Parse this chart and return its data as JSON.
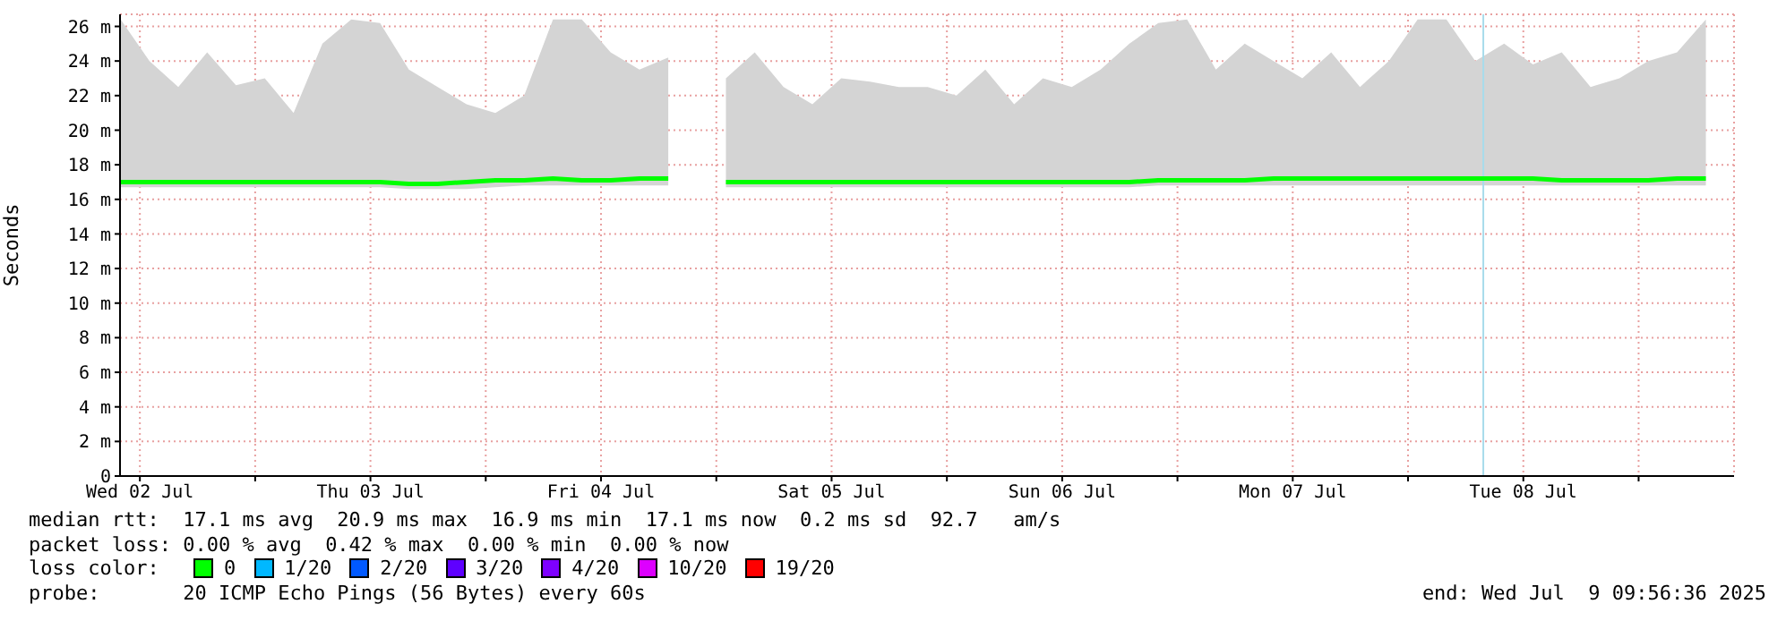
{
  "chart_data": {
    "type": "line",
    "ylabel": "Seconds",
    "legend_title": "loss color:",
    "x": [
      "2025-07-02T10:00",
      "2025-07-02T13:00",
      "2025-07-02T16:00",
      "2025-07-02T19:00",
      "2025-07-02T22:00",
      "2025-07-03T01:00",
      "2025-07-03T04:00",
      "2025-07-03T07:00",
      "2025-07-03T10:00",
      "2025-07-03T13:00",
      "2025-07-03T16:00",
      "2025-07-03T19:00",
      "2025-07-03T22:00",
      "2025-07-04T01:00",
      "2025-07-04T04:00",
      "2025-07-04T07:00",
      "2025-07-04T10:00",
      "2025-07-04T13:00",
      "2025-07-04T16:00",
      "2025-07-04T19:00",
      "2025-07-04T22:00",
      "2025-07-05T01:00",
      "2025-07-05T04:00",
      "2025-07-05T07:00",
      "2025-07-05T10:00",
      "2025-07-05T13:00",
      "2025-07-05T16:00",
      "2025-07-05T19:00",
      "2025-07-05T22:00",
      "2025-07-06T01:00",
      "2025-07-06T04:00",
      "2025-07-06T07:00",
      "2025-07-06T10:00",
      "2025-07-06T13:00",
      "2025-07-06T16:00",
      "2025-07-06T19:00",
      "2025-07-06T22:00",
      "2025-07-07T01:00",
      "2025-07-07T04:00",
      "2025-07-07T07:00",
      "2025-07-07T10:00",
      "2025-07-07T13:00",
      "2025-07-07T16:00",
      "2025-07-07T19:00",
      "2025-07-07T22:00",
      "2025-07-08T01:00",
      "2025-07-08T04:00",
      "2025-07-08T07:00",
      "2025-07-08T10:00",
      "2025-07-08T13:00",
      "2025-07-08T16:00",
      "2025-07-08T19:00",
      "2025-07-08T22:00",
      "2025-07-09T01:00",
      "2025-07-09T04:00",
      "2025-07-09T07:00"
    ],
    "series": [
      {
        "name": "0",
        "color": "#00ff00",
        "values": [
          17.0,
          17.0,
          17.0,
          17.0,
          17.0,
          17.0,
          17.0,
          17.0,
          17.0,
          17.0,
          16.9,
          16.9,
          17.0,
          17.1,
          17.1,
          17.2,
          17.1,
          17.1,
          17.2,
          17.2,
          null,
          17.0,
          17.0,
          17.0,
          17.0,
          17.0,
          17.0,
          17.0,
          17.0,
          17.0,
          17.0,
          17.0,
          17.0,
          17.0,
          17.0,
          17.0,
          17.1,
          17.1,
          17.1,
          17.1,
          17.2,
          17.2,
          17.2,
          17.2,
          17.2,
          17.2,
          17.2,
          17.2,
          17.2,
          17.2,
          17.1,
          17.1,
          17.1,
          17.1,
          17.2,
          17.2
        ],
        "lower": [
          16.7,
          16.7,
          16.7,
          16.7,
          16.7,
          16.7,
          16.7,
          16.7,
          16.7,
          16.7,
          16.6,
          16.6,
          16.6,
          16.7,
          16.8,
          16.8,
          16.8,
          16.8,
          16.8,
          16.8,
          null,
          16.7,
          16.7,
          16.7,
          16.7,
          16.7,
          16.7,
          16.7,
          16.7,
          16.7,
          16.7,
          16.7,
          16.7,
          16.7,
          16.7,
          16.7,
          16.8,
          16.8,
          16.8,
          16.8,
          16.8,
          16.8,
          16.8,
          16.8,
          16.8,
          16.8,
          16.8,
          16.8,
          16.8,
          16.8,
          16.8,
          16.8,
          16.8,
          16.8,
          16.8,
          16.8
        ],
        "upper": [
          26.4,
          24.0,
          22.5,
          24.5,
          22.6,
          23.0,
          21.0,
          25.0,
          26.4,
          26.2,
          23.5,
          22.5,
          21.5,
          21.0,
          22.0,
          26.4,
          26.4,
          24.5,
          23.5,
          24.2,
          null,
          23.0,
          24.5,
          22.5,
          21.5,
          23.0,
          22.8,
          22.5,
          22.5,
          22.0,
          23.5,
          21.5,
          23.0,
          22.5,
          23.5,
          25.0,
          26.2,
          26.4,
          23.5,
          25.0,
          24.0,
          23.0,
          24.5,
          22.5,
          24.0,
          26.4,
          26.4,
          24.0,
          25.0,
          23.8,
          24.5,
          22.5,
          23.0,
          24.0,
          24.5,
          26.4
        ]
      },
      {
        "name": "1/20",
        "color": "#00b8ff",
        "values": [
          null,
          null,
          null,
          null,
          null,
          null,
          null,
          null,
          null,
          null,
          null,
          null,
          null,
          null,
          null,
          null,
          null,
          null,
          null,
          null,
          null,
          null,
          null,
          null,
          null,
          null,
          null,
          null,
          null,
          null,
          null,
          null,
          null,
          null,
          null,
          null,
          null,
          null,
          null,
          null,
          null,
          null,
          null,
          null,
          null,
          null,
          null,
          null,
          null,
          null,
          null,
          null,
          null,
          null,
          null,
          null
        ]
      },
      {
        "name": "2/20",
        "color": "#0059ff",
        "values": [
          null,
          null,
          null,
          null,
          null,
          null,
          null,
          null,
          null,
          null,
          null,
          null,
          null,
          null,
          null,
          null,
          null,
          null,
          null,
          null,
          null,
          null,
          null,
          null,
          null,
          null,
          null,
          null,
          null,
          null,
          null,
          null,
          null,
          null,
          null,
          null,
          null,
          null,
          null,
          null,
          null,
          null,
          null,
          null,
          null,
          null,
          null,
          null,
          null,
          null,
          null,
          null,
          null,
          null,
          null,
          null
        ]
      },
      {
        "name": "3/20",
        "color": "#5e00ff",
        "values": [
          null,
          null,
          null,
          null,
          null,
          null,
          null,
          null,
          null,
          null,
          null,
          null,
          null,
          null,
          null,
          null,
          null,
          null,
          null,
          null,
          null,
          null,
          null,
          null,
          null,
          null,
          null,
          null,
          null,
          null,
          null,
          null,
          null,
          null,
          null,
          null,
          null,
          null,
          null,
          null,
          null,
          null,
          null,
          null,
          null,
          null,
          null,
          null,
          null,
          null,
          null,
          null,
          null,
          null,
          null,
          null
        ]
      },
      {
        "name": "4/20",
        "color": "#7e00ff",
        "values": [
          null,
          null,
          null,
          null,
          null,
          null,
          null,
          null,
          null,
          null,
          null,
          null,
          null,
          null,
          null,
          null,
          null,
          null,
          null,
          null,
          null,
          null,
          null,
          null,
          null,
          null,
          null,
          null,
          null,
          null,
          null,
          null,
          null,
          null,
          null,
          null,
          null,
          null,
          null,
          null,
          null,
          null,
          null,
          null,
          null,
          null,
          null,
          null,
          null,
          null,
          null,
          null,
          null,
          null,
          null,
          null
        ]
      },
      {
        "name": "10/20",
        "color": "#dd00ff",
        "values": [
          null,
          null,
          null,
          null,
          null,
          null,
          null,
          null,
          null,
          null,
          null,
          null,
          null,
          null,
          null,
          null,
          null,
          null,
          null,
          null,
          null,
          null,
          null,
          null,
          null,
          null,
          null,
          null,
          null,
          null,
          null,
          null,
          null,
          null,
          null,
          null,
          null,
          null,
          null,
          null,
          null,
          null,
          null,
          null,
          null,
          null,
          null,
          null,
          null,
          null,
          null,
          null,
          null,
          null,
          null,
          null
        ]
      },
      {
        "name": "19/20",
        "color": "#ff0000",
        "values": [
          null,
          null,
          null,
          null,
          null,
          null,
          null,
          null,
          null,
          null,
          null,
          null,
          null,
          null,
          null,
          null,
          null,
          null,
          null,
          null,
          null,
          null,
          null,
          null,
          null,
          null,
          null,
          null,
          null,
          null,
          null,
          null,
          null,
          null,
          null,
          null,
          null,
          null,
          null,
          null,
          null,
          null,
          null,
          null,
          null,
          null,
          null,
          null,
          null,
          null,
          null,
          null,
          null,
          null,
          null,
          null
        ]
      }
    ],
    "xlim": [
      "2025-07-02T09:56",
      "2025-07-09T09:56"
    ],
    "xticks": [
      {
        "value": "2025-07-02T12:00",
        "label": "Wed 02 Jul"
      },
      {
        "value": "2025-07-03T00:00",
        "label": null
      },
      {
        "value": "2025-07-03T12:00",
        "label": "Thu 03 Jul"
      },
      {
        "value": "2025-07-04T00:00",
        "label": null
      },
      {
        "value": "2025-07-04T12:00",
        "label": "Fri 04 Jul"
      },
      {
        "value": "2025-07-05T00:00",
        "label": null
      },
      {
        "value": "2025-07-05T12:00",
        "label": "Sat 05 Jul"
      },
      {
        "value": "2025-07-06T00:00",
        "label": null
      },
      {
        "value": "2025-07-06T12:00",
        "label": "Sun 06 Jul"
      },
      {
        "value": "2025-07-07T00:00",
        "label": null
      },
      {
        "value": "2025-07-07T12:00",
        "label": "Mon 07 Jul"
      },
      {
        "value": "2025-07-08T00:00",
        "label": null
      },
      {
        "value": "2025-07-08T12:00",
        "label": "Tue 08 Jul"
      },
      {
        "value": "2025-07-09T00:00",
        "label": null
      }
    ],
    "ylim": [
      0,
      26.7
    ],
    "yticks": [
      0,
      {
        "value": 2,
        "label": "2 m"
      },
      {
        "value": 4,
        "label": "4 m"
      },
      {
        "value": 6,
        "label": "6 m"
      },
      {
        "value": 8,
        "label": "8 m"
      },
      {
        "value": 10,
        "label": "10 m"
      },
      {
        "value": 12,
        "label": "12 m"
      },
      {
        "value": 14,
        "label": "14 m"
      },
      {
        "value": 16,
        "label": "16 m"
      },
      {
        "value": 18,
        "label": "18 m"
      },
      {
        "value": 20,
        "label": "20 m"
      },
      {
        "value": 22,
        "label": "22 m"
      },
      {
        "value": 24,
        "label": "24 m"
      },
      {
        "value": 26,
        "label": "26 m"
      }
    ],
    "ref_lines": [
      {
        "axis": "x",
        "value": "2025-07-08T07:50",
        "color": "#a8dcec"
      }
    ],
    "grid": true,
    "legend": "bottom",
    "marker": "none",
    "line_style": "solid",
    "annotations": [
      "median rtt:  17.1 ms avg  20.9 ms max  16.9 ms min  17.1 ms now  0.2 ms sd  92.7   am/s",
      "packet loss: 0.00 % avg  0.42 % max  0.00 % min  0.00 % now",
      "probe:       20 ICMP Echo Pings (56 Bytes) every 60s",
      "end: Wed Jul  9 09:56:36 2025"
    ]
  }
}
